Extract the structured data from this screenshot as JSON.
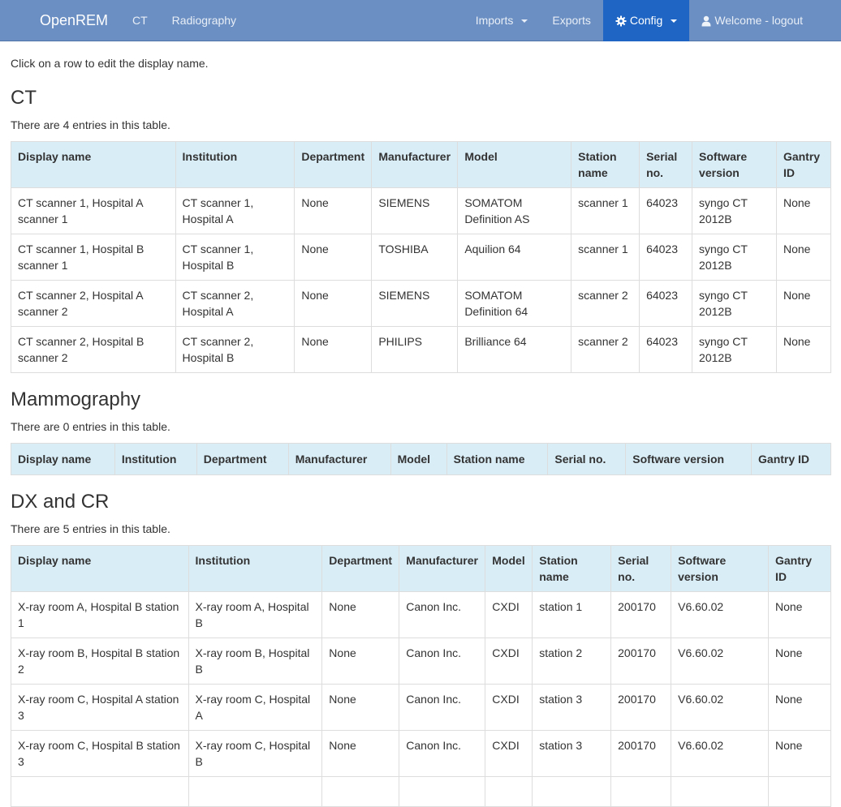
{
  "nav": {
    "brand": "OpenREM",
    "left_items": [
      "CT",
      "Radiography"
    ],
    "imports": "Imports",
    "exports": "Exports",
    "config": "Config",
    "welcome": "Welcome - logout"
  },
  "intro": "Click on a row to edit the display name.",
  "ct": {
    "title": "CT",
    "count": "There are 4 entries in this table.",
    "headers": [
      "Display name",
      "Institution",
      "Department",
      "Manufacturer",
      "Model",
      "Station name",
      "Serial no.",
      "Software version",
      "Gantry ID"
    ],
    "rows": [
      [
        "CT scanner 1, Hospital A scanner 1",
        "CT scanner 1, Hospital A",
        "None",
        "SIEMENS",
        "SOMATOM Definition AS",
        "scanner 1",
        "64023",
        "syngo CT 2012B",
        "None"
      ],
      [
        "CT scanner 1, Hospital B scanner 1",
        "CT scanner 1, Hospital B",
        "None",
        "TOSHIBA",
        "Aquilion 64",
        "scanner 1",
        "64023",
        "syngo CT 2012B",
        "None"
      ],
      [
        "CT scanner 2, Hospital A scanner 2",
        "CT scanner 2, Hospital A",
        "None",
        "SIEMENS",
        "SOMATOM Definition 64",
        "scanner 2",
        "64023",
        "syngo CT 2012B",
        "None"
      ],
      [
        "CT scanner 2, Hospital B scanner 2",
        "CT scanner 2, Hospital B",
        "None",
        "PHILIPS",
        "Brilliance 64",
        "scanner 2",
        "64023",
        "syngo CT 2012B",
        "None"
      ]
    ]
  },
  "mammo": {
    "title": "Mammography",
    "count": "There are 0 entries in this table.",
    "headers": [
      "Display name",
      "Institution",
      "Department",
      "Manufacturer",
      "Model",
      "Station name",
      "Serial no.",
      "Software version",
      "Gantry ID"
    ]
  },
  "dx": {
    "title": "DX and CR",
    "count": "There are 5 entries in this table.",
    "headers": [
      "Display name",
      "Institution",
      "Department",
      "Manufacturer",
      "Model",
      "Station name",
      "Serial no.",
      "Software version",
      "Gantry ID"
    ],
    "rows": [
      [
        "X-ray room A, Hospital B station 1",
        "X-ray room A, Hospital B",
        "None",
        "Canon Inc.",
        "CXDI",
        "station 1",
        "200170",
        "V6.60.02",
        "None"
      ],
      [
        "X-ray room B, Hospital B station 2",
        "X-ray room B, Hospital B",
        "None",
        "Canon Inc.",
        "CXDI",
        "station 2",
        "200170",
        "V6.60.02",
        "None"
      ],
      [
        "X-ray room C, Hospital A station 3",
        "X-ray room C, Hospital A",
        "None",
        "Canon Inc.",
        "CXDI",
        "station 3",
        "200170",
        "V6.60.02",
        "None"
      ],
      [
        "X-ray room C, Hospital B station 3",
        "X-ray room C, Hospital B",
        "None",
        "Canon Inc.",
        "CXDI",
        "station 3",
        "200170",
        "V6.60.02",
        "None"
      ],
      [
        "",
        "",
        "",
        "",
        "",
        "",
        "",
        "",
        ""
      ]
    ]
  }
}
